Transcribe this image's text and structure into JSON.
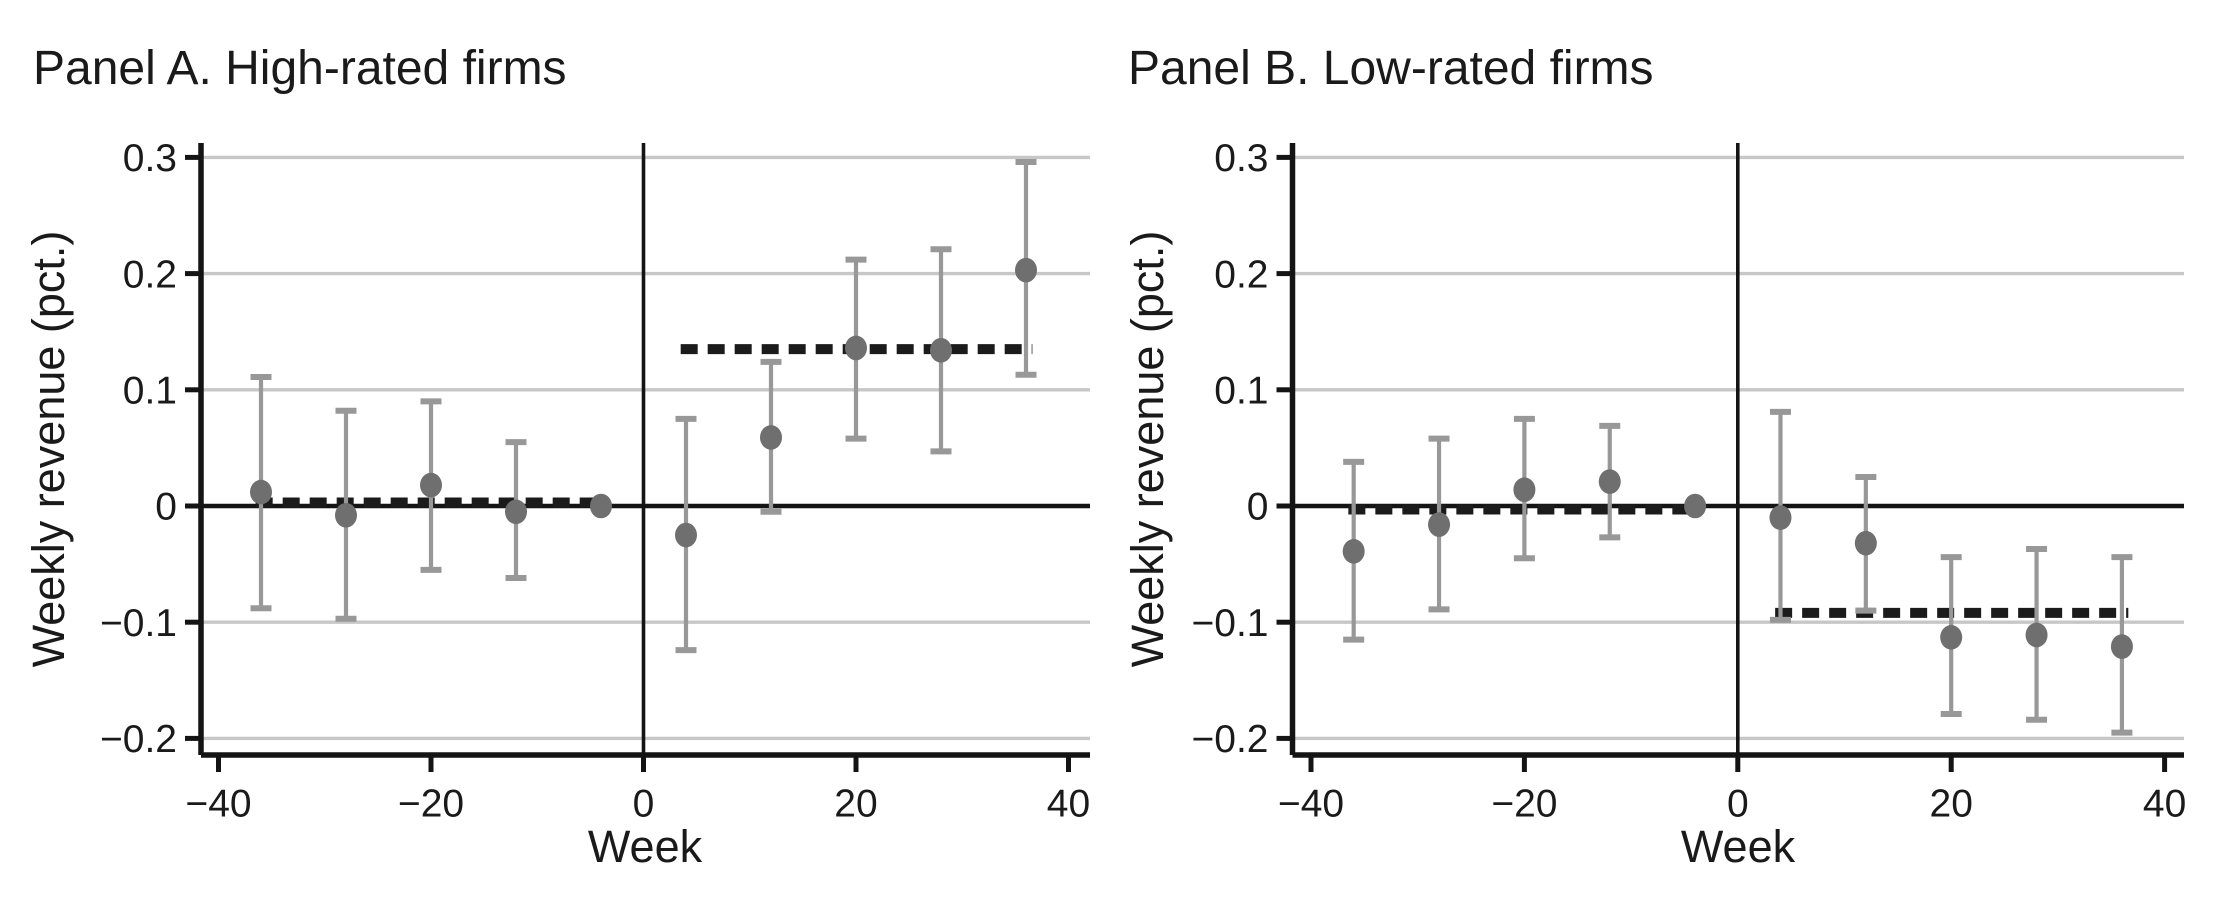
{
  "figure": {
    "background": "#ffffff",
    "style": {
      "text_color": "#1a1a1a",
      "grid_color": "#c7c7c7",
      "axis_color": "#141414",
      "zero_line_color": "#141414",
      "event_line_color": "#141414",
      "whisker_color": "#989898",
      "marker_color": "#6f6f6f",
      "mean_line_color": "#1b1b1b"
    }
  },
  "chart_data": [
    {
      "type": "scatter",
      "title": "Panel A. High-rated firms",
      "xlabel": "Week",
      "ylabel": "Weekly revenue (pct.)",
      "x_ticks": [
        -40,
        -20,
        0,
        20,
        40
      ],
      "x_tick_labels": [
        "−40",
        "−20",
        "0",
        "20",
        "40"
      ],
      "y_ticks": [
        0.3,
        0.2,
        0.1,
        0,
        -0.1,
        -0.2
      ],
      "y_tick_labels": [
        "0.3",
        "0.2",
        "0.1",
        "0",
        "−0.1",
        "−0.2"
      ],
      "xlim": [
        -41.6,
        42
      ],
      "ylim": [
        -0.214,
        0.312
      ],
      "grid": "horizontal",
      "event_vline_x": 0,
      "points": [
        {
          "week": -36,
          "est": 0.012,
          "lo": -0.088,
          "hi": 0.111
        },
        {
          "week": -28,
          "est": -0.008,
          "lo": -0.097,
          "hi": 0.082
        },
        {
          "week": -20,
          "est": 0.018,
          "lo": -0.055,
          "hi": 0.09
        },
        {
          "week": -12,
          "est": -0.005,
          "lo": -0.062,
          "hi": 0.055
        },
        {
          "week": -4,
          "est": 0.0,
          "lo": null,
          "hi": null
        },
        {
          "week": 4,
          "est": -0.025,
          "lo": -0.124,
          "hi": 0.075
        },
        {
          "week": 12,
          "est": 0.059,
          "lo": -0.005,
          "hi": 0.124
        },
        {
          "week": 20,
          "est": 0.136,
          "lo": 0.058,
          "hi": 0.212
        },
        {
          "week": 28,
          "est": 0.134,
          "lo": 0.047,
          "hi": 0.221
        },
        {
          "week": 36,
          "est": 0.203,
          "lo": 0.113,
          "hi": 0.296
        }
      ],
      "mean_lines": [
        {
          "period": "pre",
          "value": 0.003,
          "from_week": -36.5,
          "to_week": -3.4
        },
        {
          "period": "post",
          "value": 0.135,
          "from_week": 3.5,
          "to_week": 36.6
        }
      ]
    },
    {
      "type": "scatter",
      "title": "Panel B. Low-rated firms",
      "xlabel": "Week",
      "ylabel": "Weekly revenue (pct.)",
      "x_ticks": [
        -40,
        -20,
        0,
        20,
        40
      ],
      "x_tick_labels": [
        "−40",
        "−20",
        "0",
        "20",
        "40"
      ],
      "y_ticks": [
        0.3,
        0.2,
        0.1,
        0,
        -0.1,
        -0.2
      ],
      "y_tick_labels": [
        "0.3",
        "0.2",
        "0.1",
        "0",
        "−0.1",
        "−0.2"
      ],
      "xlim": [
        -41.6,
        42
      ],
      "ylim": [
        -0.214,
        0.312
      ],
      "grid": "horizontal",
      "event_vline_x": 0,
      "points": [
        {
          "week": -36,
          "est": -0.039,
          "lo": -0.115,
          "hi": 0.038
        },
        {
          "week": -28,
          "est": -0.016,
          "lo": -0.089,
          "hi": 0.058
        },
        {
          "week": -20,
          "est": 0.014,
          "lo": -0.045,
          "hi": 0.075
        },
        {
          "week": -12,
          "est": 0.021,
          "lo": -0.027,
          "hi": 0.069
        },
        {
          "week": -4,
          "est": 0.0,
          "lo": null,
          "hi": null
        },
        {
          "week": 4,
          "est": -0.01,
          "lo": -0.098,
          "hi": 0.081
        },
        {
          "week": 12,
          "est": -0.032,
          "lo": -0.09,
          "hi": 0.025
        },
        {
          "week": 20,
          "est": -0.113,
          "lo": -0.179,
          "hi": -0.044
        },
        {
          "week": 28,
          "est": -0.111,
          "lo": -0.184,
          "hi": -0.037
        },
        {
          "week": 36,
          "est": -0.121,
          "lo": -0.195,
          "hi": -0.044
        }
      ],
      "mean_lines": [
        {
          "period": "pre",
          "value": -0.003,
          "from_week": -36.5,
          "to_week": -3.4
        },
        {
          "period": "post",
          "value": -0.092,
          "from_week": 3.5,
          "to_week": 36.6
        }
      ]
    }
  ]
}
